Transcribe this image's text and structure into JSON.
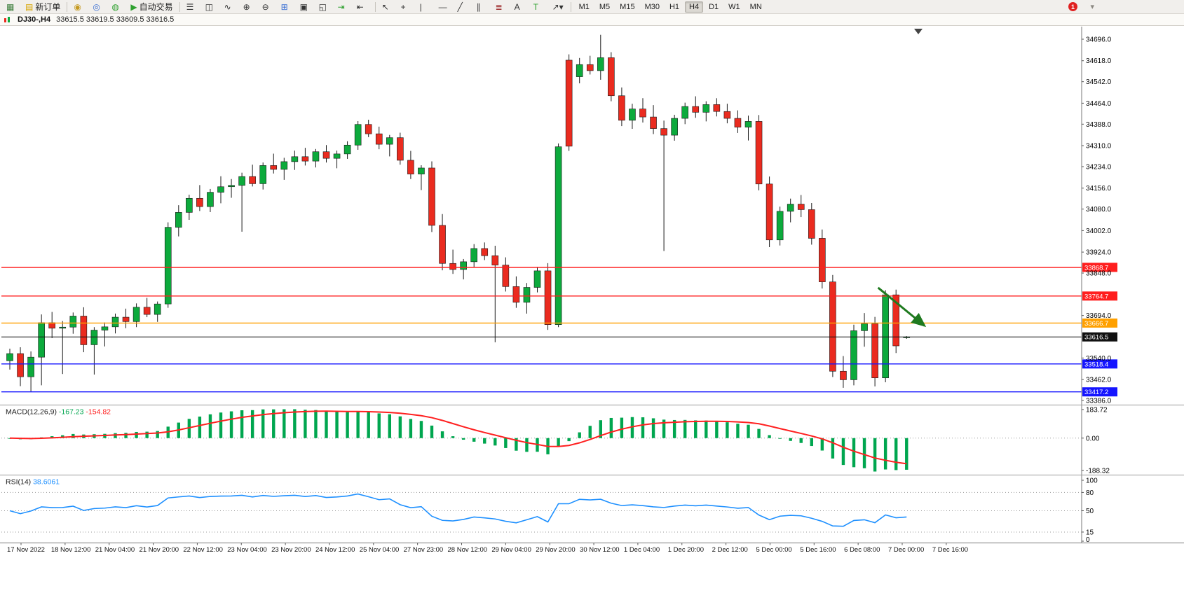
{
  "toolbar": {
    "icon_groups": [
      [
        {
          "name": "new-chart",
          "glyph": "▦",
          "color": "#3a7d3a"
        },
        {
          "name": "new-order-button",
          "glyph": "▤",
          "color": "#d7a400",
          "label": "新订单"
        }
      ],
      [
        {
          "name": "market-watch",
          "glyph": "◉",
          "color": "#c59a22"
        },
        {
          "name": "data-window",
          "glyph": "◎",
          "color": "#3b6fd4"
        },
        {
          "name": "navigator",
          "glyph": "◍",
          "color": "#2fa12f"
        },
        {
          "name": "auto-trading-button",
          "glyph": "▶",
          "color": "#2fa12f",
          "label": "自动交易"
        }
      ],
      [
        {
          "name": "bar-chart-mode",
          "glyph": "☰",
          "color": "#333333"
        },
        {
          "name": "candle-chart-mode",
          "glyph": "◫",
          "color": "#333333"
        },
        {
          "name": "line-chart-mode",
          "glyph": "∿",
          "color": "#333333"
        },
        {
          "name": "zoom-in",
          "glyph": "⊕",
          "color": "#333333"
        },
        {
          "name": "zoom-out",
          "glyph": "⊖",
          "color": "#333333"
        },
        {
          "name": "tile-windows",
          "glyph": "⊞",
          "color": "#3b6fd4"
        },
        {
          "name": "cascade-windows",
          "glyph": "▣",
          "color": "#333333"
        },
        {
          "name": "arrange-windows",
          "glyph": "◱",
          "color": "#333333"
        },
        {
          "name": "auto-scroll",
          "glyph": "⇥",
          "color": "#2fa12f"
        },
        {
          "name": "chart-shift",
          "glyph": "⇤",
          "color": "#333333"
        }
      ],
      [
        {
          "name": "cursor-tool",
          "glyph": "↖",
          "color": "#333333"
        },
        {
          "name": "crosshair-tool",
          "glyph": "+",
          "color": "#333333"
        },
        {
          "name": "vertical-line-tool",
          "glyph": "|",
          "color": "#333333"
        },
        {
          "name": "horizontal-line-tool",
          "glyph": "—",
          "color": "#333333"
        },
        {
          "name": "trendline-tool",
          "glyph": "╱",
          "color": "#333333"
        },
        {
          "name": "channel-tool",
          "glyph": "∥",
          "color": "#333333"
        },
        {
          "name": "fibonacci-tool",
          "glyph": "≣",
          "color": "#a03030"
        },
        {
          "name": "text-tool",
          "glyph": "A",
          "color": "#333333"
        },
        {
          "name": "label-tool",
          "glyph": "T",
          "color": "#2fa12f"
        },
        {
          "name": "shapes-tool",
          "glyph": "↗▾",
          "color": "#333333"
        }
      ]
    ],
    "timeframes": [
      "M1",
      "M5",
      "M15",
      "M30",
      "H1",
      "H4",
      "D1",
      "W1",
      "MN"
    ],
    "active_timeframe": "H4",
    "notification_badge": "1",
    "corner_glyph": "▾"
  },
  "chart": {
    "title": "DJ30-,H4",
    "ohlc_line": "33615.5 33619.5 33609.5 33616.5"
  },
  "chart_data": {
    "type": "candlestick",
    "symbol": "DJ30-",
    "timeframe": "H4",
    "current_bar": {
      "open": 33615.5,
      "high": 33619.5,
      "low": 33609.5,
      "close": 33616.5
    },
    "colors": {
      "bull": "#0CAA3C",
      "bear": "#EA2B1F",
      "wick": "#1A1A1A",
      "background": "#FFFFFF",
      "axis_text": "#000000"
    },
    "y_axis": {
      "labels": [
        34696.0,
        34618.0,
        34542.0,
        34464.0,
        34388.0,
        34310.0,
        34234.0,
        34156.0,
        34080.0,
        34002.0,
        33924.0,
        33848.0,
        33694.0,
        33540.0,
        33462.0,
        33386.0
      ]
    },
    "x_axis": {
      "labels": [
        "17 Nov 2022",
        "18 Nov 12:00",
        "21 Nov 04:00",
        "21 Nov 20:00",
        "22 Nov 12:00",
        "23 Nov 04:00",
        "23 Nov 20:00",
        "24 Nov 12:00",
        "25 Nov 04:00",
        "27 Nov 23:00",
        "28 Nov 12:00",
        "29 Nov 04:00",
        "29 Nov 20:00",
        "30 Nov 12:00",
        "1 Dec 04:00",
        "1 Dec 20:00",
        "2 Dec 12:00",
        "5 Dec 00:00",
        "5 Dec 16:00",
        "6 Dec 08:00",
        "7 Dec 00:00",
        "7 Dec 16:00"
      ]
    },
    "candles": [
      [
        33530,
        33574,
        33498,
        33556
      ],
      [
        33556,
        33579,
        33438,
        33472
      ],
      [
        33472,
        33564,
        33419,
        33543
      ],
      [
        33543,
        33698,
        33441,
        33668
      ],
      [
        33668,
        33707,
        33612,
        33648
      ],
      [
        33648,
        33674,
        33482,
        33652
      ],
      [
        33652,
        33705,
        33628,
        33692
      ],
      [
        33692,
        33724,
        33561,
        33588
      ],
      [
        33588,
        33652,
        33480,
        33641
      ],
      [
        33641,
        33669,
        33582,
        33653
      ],
      [
        33653,
        33701,
        33629,
        33688
      ],
      [
        33688,
        33719,
        33648,
        33672
      ],
      [
        33672,
        33738,
        33652,
        33724
      ],
      [
        33724,
        33758,
        33688,
        33698
      ],
      [
        33698,
        33745,
        33671,
        33736
      ],
      [
        33736,
        34032,
        33722,
        34014
      ],
      [
        34014,
        34094,
        33981,
        34068
      ],
      [
        34068,
        34132,
        34041,
        34119
      ],
      [
        34119,
        34167,
        34073,
        34089
      ],
      [
        34089,
        34153,
        34069,
        34141
      ],
      [
        34141,
        34199,
        34101,
        34161
      ],
      [
        34161,
        34189,
        34121,
        34166
      ],
      [
        34166,
        34212,
        33998,
        34198
      ],
      [
        34198,
        34241,
        34162,
        34172
      ],
      [
        34172,
        34249,
        34151,
        34238
      ],
      [
        34238,
        34281,
        34209,
        34224
      ],
      [
        34224,
        34266,
        34186,
        34252
      ],
      [
        34252,
        34292,
        34222,
        34270
      ],
      [
        34270,
        34302,
        34238,
        34254
      ],
      [
        34254,
        34298,
        34231,
        34288
      ],
      [
        34288,
        34312,
        34249,
        34264
      ],
      [
        34264,
        34292,
        34228,
        34280
      ],
      [
        34280,
        34326,
        34262,
        34312
      ],
      [
        34312,
        34399,
        34295,
        34387
      ],
      [
        34387,
        34404,
        34341,
        34353
      ],
      [
        34353,
        34379,
        34297,
        34315
      ],
      [
        34315,
        34349,
        34271,
        34339
      ],
      [
        34339,
        34357,
        34241,
        34257
      ],
      [
        34257,
        34291,
        34189,
        34207
      ],
      [
        34207,
        34239,
        34149,
        34229
      ],
      [
        34229,
        34253,
        33997,
        34021
      ],
      [
        34021,
        34062,
        33858,
        33883
      ],
      [
        33883,
        33933,
        33845,
        33861
      ],
      [
        33861,
        33899,
        33825,
        33889
      ],
      [
        33889,
        33953,
        33869,
        33937
      ],
      [
        33937,
        33959,
        33895,
        33911
      ],
      [
        33911,
        33947,
        33597,
        33877
      ],
      [
        33877,
        33905,
        33781,
        33799
      ],
      [
        33799,
        33836,
        33722,
        33742
      ],
      [
        33742,
        33812,
        33701,
        33796
      ],
      [
        33796,
        33871,
        33778,
        33856
      ],
      [
        33856,
        33884,
        33642,
        33661
      ],
      [
        33661,
        34318,
        33652,
        34306
      ],
      [
        34620,
        34641,
        34291,
        34308
      ],
      [
        34560,
        34628,
        34536,
        34604
      ],
      [
        34604,
        34636,
        34568,
        34582
      ],
      [
        34582,
        34712,
        34549,
        34629
      ],
      [
        34629,
        34649,
        34471,
        34491
      ],
      [
        34491,
        34521,
        34381,
        34402
      ],
      [
        34402,
        34462,
        34371,
        34443
      ],
      [
        34443,
        34482,
        34394,
        34414
      ],
      [
        34414,
        34457,
        34352,
        34372
      ],
      [
        34372,
        34401,
        33928,
        34348
      ],
      [
        34348,
        34422,
        34328,
        34409
      ],
      [
        34409,
        34466,
        34388,
        34452
      ],
      [
        34452,
        34489,
        34411,
        34431
      ],
      [
        34431,
        34471,
        34398,
        34459
      ],
      [
        34459,
        34482,
        34416,
        34434
      ],
      [
        34434,
        34462,
        34391,
        34409
      ],
      [
        34409,
        34438,
        34356,
        34377
      ],
      [
        34377,
        34419,
        34329,
        34398
      ],
      [
        34398,
        34421,
        34148,
        34171
      ],
      [
        34171,
        34198,
        33942,
        33968
      ],
      [
        33968,
        34089,
        33948,
        34072
      ],
      [
        34072,
        34118,
        34032,
        34098
      ],
      [
        34098,
        34131,
        34051,
        34078
      ],
      [
        34078,
        34102,
        33951,
        33974
      ],
      [
        33974,
        34006,
        33792,
        33816
      ],
      [
        33816,
        33841,
        33471,
        33492
      ],
      [
        33492,
        33547,
        33432,
        33461
      ],
      [
        33461,
        33661,
        33441,
        33639
      ],
      [
        33639,
        33703,
        33581,
        33664
      ],
      [
        33664,
        33689,
        33437,
        33468
      ],
      [
        33468,
        33786,
        33452,
        33769
      ],
      [
        33769,
        33788,
        33558,
        33584
      ],
      [
        33615.5,
        33619.5,
        33609.5,
        33616.5
      ]
    ],
    "h_lines": [
      {
        "price": 33868.7,
        "label": "33868.7",
        "color": "#FF1E1E"
      },
      {
        "price": 33764.7,
        "label": "33764.7",
        "color": "#FF1E1E"
      },
      {
        "price": 33666.7,
        "label": "33666.7",
        "color": "#FFA000"
      },
      {
        "price": 33616.5,
        "label": "33616.5",
        "color": "#111111",
        "current": true
      },
      {
        "price": 33518.4,
        "label": "33518.4",
        "color": "#1515FF"
      },
      {
        "price": 33417.2,
        "label": "33417.2",
        "color": "#1515FF"
      }
    ],
    "indicators": [
      {
        "id": "macd",
        "label": "MACD(12,26,9)",
        "main_value": "-167.23",
        "signal_value": "-154.82",
        "fast": 12,
        "slow": 26,
        "signal": 9,
        "axis_labels": [
          "183.72",
          "0.00",
          "-188.32"
        ],
        "hist_color": "#00A64F",
        "signal_color": "#FF2020"
      },
      {
        "id": "rsi",
        "label": "RSI(14)",
        "value": "38.6061",
        "period": 14,
        "levels": [
          80,
          50,
          15
        ],
        "axis_labels": [
          "100",
          "80",
          "50",
          "15",
          "0"
        ],
        "line_color": "#1E90FF"
      }
    ],
    "arrow": {
      "from_index": 82.3,
      "from_price": 33795,
      "to_index": 86.7,
      "to_price": 33657,
      "color": "#1F7A1F"
    }
  }
}
